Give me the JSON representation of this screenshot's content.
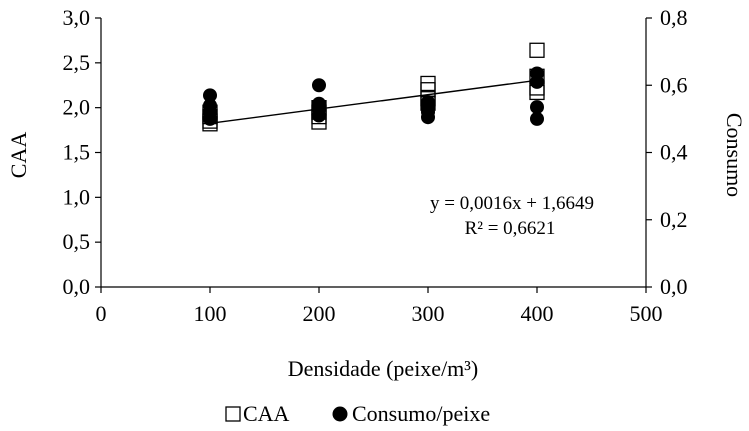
{
  "chart_data": {
    "type": "scatter",
    "xlabel": "Densidade (peixe/m³)",
    "ylabel": "CAA",
    "y2label": "Consumo",
    "xlim": [
      0,
      500
    ],
    "ylim": [
      0,
      3.0
    ],
    "y2lim": [
      0,
      0.8
    ],
    "x_ticks": [
      "0",
      "100",
      "200",
      "300",
      "400",
      "500"
    ],
    "y_ticks": [
      "0,0",
      "0,5",
      "1,0",
      "1,5",
      "2,0",
      "2,5",
      "3,0"
    ],
    "y2_ticks": [
      "0,0",
      "0,2",
      "0,4",
      "0,6",
      "0,8"
    ],
    "grid": false,
    "legend_position": "bottom",
    "series": [
      {
        "name": "CAA",
        "axis": "left",
        "marker": "open-square",
        "points": [
          [
            100,
            1.82
          ],
          [
            100,
            1.85
          ],
          [
            100,
            1.9
          ],
          [
            100,
            1.95
          ],
          [
            200,
            1.84
          ],
          [
            200,
            1.9
          ],
          [
            200,
            1.95
          ],
          [
            200,
            2.0
          ],
          [
            300,
            2.05
          ],
          [
            300,
            2.1
          ],
          [
            300,
            2.2
          ],
          [
            300,
            2.27
          ],
          [
            400,
            2.17
          ],
          [
            400,
            2.22
          ],
          [
            400,
            2.35
          ],
          [
            400,
            2.64
          ]
        ]
      },
      {
        "name": "Consumo/peixe",
        "axis": "right",
        "marker": "filled-circle",
        "points": [
          [
            100,
            0.5
          ],
          [
            100,
            0.52
          ],
          [
            100,
            0.54
          ],
          [
            100,
            0.57
          ],
          [
            200,
            0.51
          ],
          [
            200,
            0.53
          ],
          [
            200,
            0.545
          ],
          [
            200,
            0.6
          ],
          [
            300,
            0.505
          ],
          [
            300,
            0.52
          ],
          [
            300,
            0.535
          ],
          [
            300,
            0.55
          ],
          [
            400,
            0.5
          ],
          [
            400,
            0.535
          ],
          [
            400,
            0.61
          ],
          [
            400,
            0.635
          ]
        ]
      }
    ],
    "trendline": {
      "series": "CAA",
      "slope": 0.0016,
      "intercept": 1.6649,
      "x_range": [
        100,
        400
      ],
      "equation": "y = 0,0016x + 1,6649",
      "r2": "R² = 0,6621"
    },
    "colors": {
      "axis": "#000000",
      "marker": "#000000",
      "background": "#ffffff"
    }
  }
}
